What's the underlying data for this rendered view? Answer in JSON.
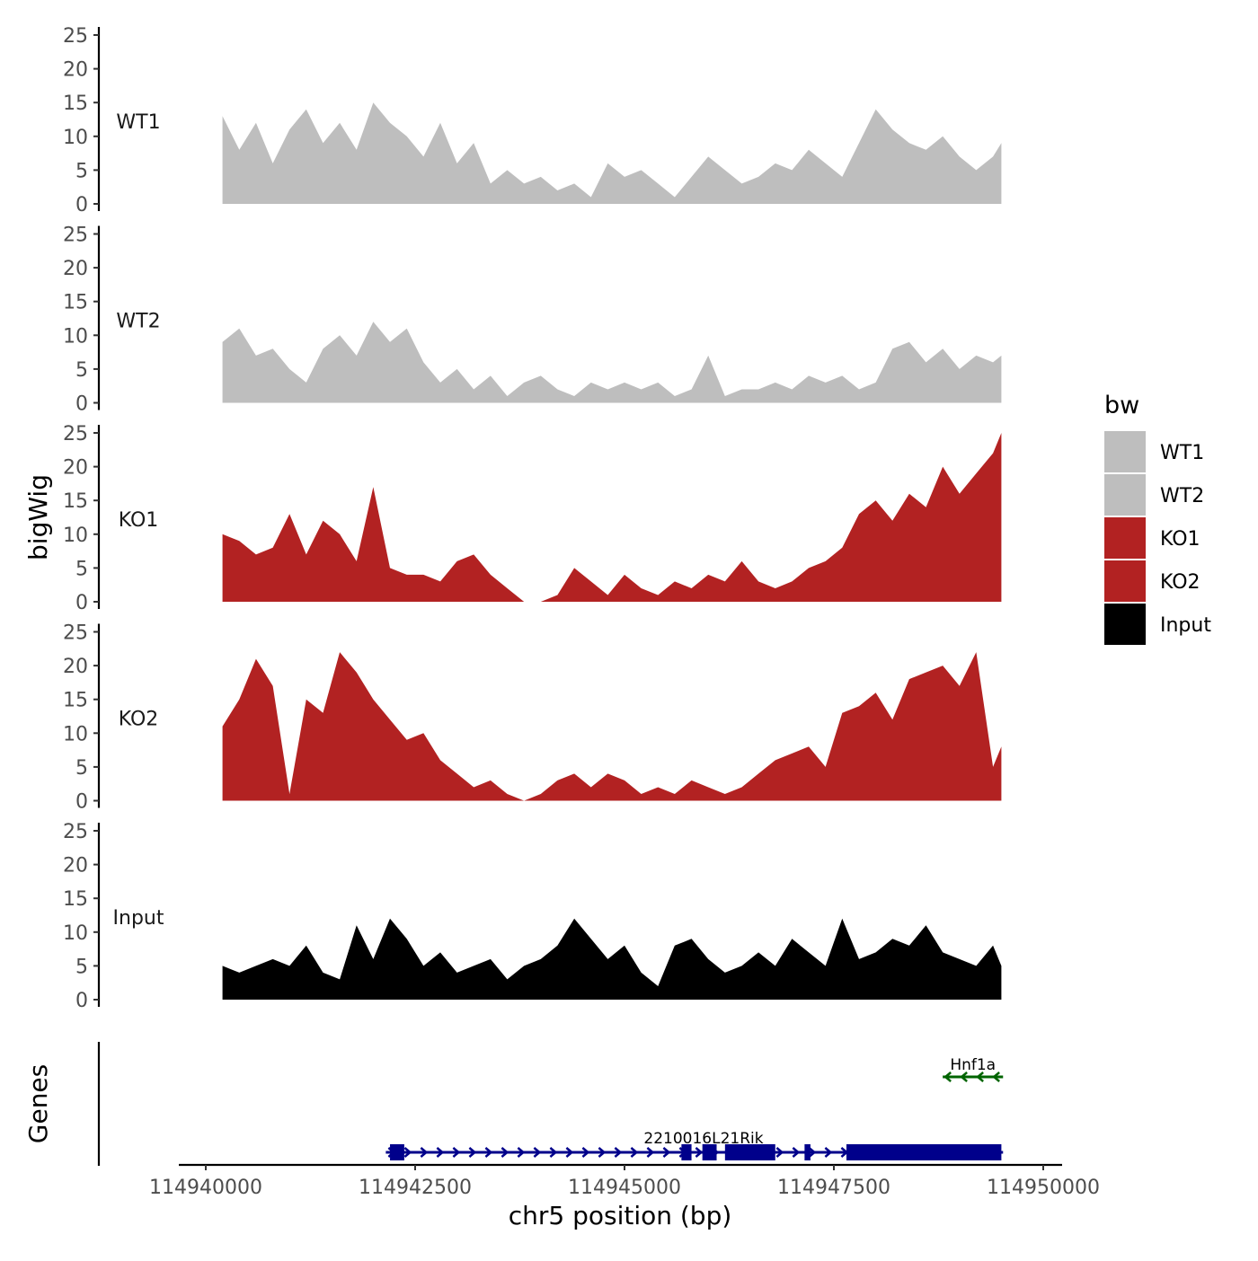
{
  "chart_data": {
    "type": "area",
    "tracks_title": "bigWig",
    "genes_title": "Genes",
    "xlabel": "chr5 position (bp)",
    "xlim": [
      114940000,
      114950000
    ],
    "x_ticks": [
      "114940000",
      "114942500",
      "114945000",
      "114947500",
      "114950000"
    ],
    "x_tick_values": [
      114940000,
      114942500,
      114945000,
      114947500,
      114950000
    ],
    "ylim": [
      0,
      25
    ],
    "y_ticks": [
      "0",
      "5",
      "10",
      "15",
      "20",
      "25"
    ],
    "y_tick_values": [
      0,
      5,
      10,
      15,
      20,
      25
    ],
    "legend": {
      "title": "bw",
      "position": "right",
      "entries": [
        {
          "label": "WT1",
          "color": "#bebebe"
        },
        {
          "label": "WT2",
          "color": "#bebebe"
        },
        {
          "label": "KO1",
          "color": "#b22222"
        },
        {
          "label": "KO2",
          "color": "#b22222"
        },
        {
          "label": "Input",
          "color": "#000000"
        }
      ]
    },
    "series": [
      {
        "name": "WT1",
        "color": "#bebebe",
        "x": [
          114940200,
          114940400,
          114940600,
          114940800,
          114941000,
          114941200,
          114941400,
          114941600,
          114941800,
          114942000,
          114942200,
          114942400,
          114942600,
          114942800,
          114943000,
          114943200,
          114943400,
          114943600,
          114943800,
          114944000,
          114944200,
          114944400,
          114944600,
          114944800,
          114945000,
          114945200,
          114945400,
          114945600,
          114945800,
          114946000,
          114946200,
          114946400,
          114946600,
          114946800,
          114947000,
          114947200,
          114947400,
          114947600,
          114947800,
          114948000,
          114948200,
          114948400,
          114948600,
          114948800,
          114949000,
          114949200,
          114949400,
          114949500
        ],
        "values": [
          13,
          8,
          12,
          6,
          11,
          14,
          9,
          12,
          8,
          15,
          12,
          10,
          7,
          12,
          6,
          9,
          3,
          5,
          3,
          4,
          2,
          3,
          1,
          6,
          4,
          5,
          3,
          1,
          4,
          7,
          5,
          3,
          4,
          6,
          5,
          8,
          6,
          4,
          9,
          14,
          11,
          9,
          8,
          10,
          7,
          5,
          7,
          9
        ]
      },
      {
        "name": "WT2",
        "color": "#bebebe",
        "x": [
          114940200,
          114940400,
          114940600,
          114940800,
          114941000,
          114941200,
          114941400,
          114941600,
          114941800,
          114942000,
          114942200,
          114942400,
          114942600,
          114942800,
          114943000,
          114943200,
          114943400,
          114943600,
          114943800,
          114944000,
          114944200,
          114944400,
          114944600,
          114944800,
          114945000,
          114945200,
          114945400,
          114945600,
          114945800,
          114946000,
          114946200,
          114946400,
          114946600,
          114946800,
          114947000,
          114947200,
          114947400,
          114947600,
          114947800,
          114948000,
          114948200,
          114948400,
          114948600,
          114948800,
          114949000,
          114949200,
          114949400,
          114949500
        ],
        "values": [
          9,
          11,
          7,
          8,
          5,
          3,
          8,
          10,
          7,
          12,
          9,
          11,
          6,
          3,
          5,
          2,
          4,
          1,
          3,
          4,
          2,
          1,
          3,
          2,
          3,
          2,
          3,
          1,
          2,
          7,
          1,
          2,
          2,
          3,
          2,
          4,
          3,
          4,
          2,
          3,
          8,
          9,
          6,
          8,
          5,
          7,
          6,
          7
        ]
      },
      {
        "name": "KO1",
        "color": "#b22222",
        "x": [
          114940200,
          114940400,
          114940600,
          114940800,
          114941000,
          114941200,
          114941400,
          114941600,
          114941800,
          114942000,
          114942200,
          114942400,
          114942600,
          114942800,
          114943000,
          114943200,
          114943400,
          114943600,
          114943800,
          114944000,
          114944200,
          114944400,
          114944600,
          114944800,
          114945000,
          114945200,
          114945400,
          114945600,
          114945800,
          114946000,
          114946200,
          114946400,
          114946600,
          114946800,
          114947000,
          114947200,
          114947400,
          114947600,
          114947800,
          114948000,
          114948200,
          114948400,
          114948600,
          114948800,
          114949000,
          114949200,
          114949400,
          114949500
        ],
        "values": [
          10,
          9,
          7,
          8,
          13,
          7,
          12,
          10,
          6,
          17,
          5,
          4,
          4,
          3,
          6,
          7,
          4,
          2,
          0,
          0,
          1,
          5,
          3,
          1,
          4,
          2,
          1,
          3,
          2,
          4,
          3,
          6,
          3,
          2,
          3,
          5,
          6,
          8,
          13,
          15,
          12,
          16,
          14,
          20,
          16,
          19,
          22,
          25
        ]
      },
      {
        "name": "KO2",
        "color": "#b22222",
        "x": [
          114940200,
          114940400,
          114940600,
          114940800,
          114941000,
          114941200,
          114941400,
          114941600,
          114941800,
          114942000,
          114942200,
          114942400,
          114942600,
          114942800,
          114943000,
          114943200,
          114943400,
          114943600,
          114943800,
          114944000,
          114944200,
          114944400,
          114944600,
          114944800,
          114945000,
          114945200,
          114945400,
          114945600,
          114945800,
          114946000,
          114946200,
          114946400,
          114946600,
          114946800,
          114947000,
          114947200,
          114947400,
          114947600,
          114947800,
          114948000,
          114948200,
          114948400,
          114948600,
          114948800,
          114949000,
          114949200,
          114949400,
          114949500
        ],
        "values": [
          11,
          15,
          21,
          17,
          1,
          15,
          13,
          22,
          19,
          15,
          12,
          9,
          10,
          6,
          4,
          2,
          3,
          1,
          0,
          1,
          3,
          4,
          2,
          4,
          3,
          1,
          2,
          1,
          3,
          2,
          1,
          2,
          4,
          6,
          7,
          8,
          5,
          13,
          14,
          16,
          12,
          18,
          19,
          20,
          17,
          22,
          5,
          8
        ]
      },
      {
        "name": "Input",
        "color": "#000000",
        "x": [
          114940200,
          114940400,
          114940600,
          114940800,
          114941000,
          114941200,
          114941400,
          114941600,
          114941800,
          114942000,
          114942200,
          114942400,
          114942600,
          114942800,
          114943000,
          114943200,
          114943400,
          114943600,
          114943800,
          114944000,
          114944200,
          114944400,
          114944600,
          114944800,
          114945000,
          114945200,
          114945400,
          114945600,
          114945800,
          114946000,
          114946200,
          114946400,
          114946600,
          114946800,
          114947000,
          114947200,
          114947400,
          114947600,
          114947800,
          114948000,
          114948200,
          114948400,
          114948600,
          114948800,
          114949000,
          114949200,
          114949400,
          114949500
        ],
        "values": [
          5,
          4,
          5,
          6,
          5,
          8,
          4,
          3,
          11,
          6,
          12,
          9,
          5,
          7,
          4,
          5,
          6,
          3,
          5,
          6,
          8,
          12,
          9,
          6,
          8,
          4,
          2,
          8,
          9,
          6,
          4,
          5,
          7,
          5,
          9,
          7,
          5,
          12,
          6,
          7,
          9,
          8,
          11,
          7,
          6,
          5,
          8,
          5
        ]
      }
    ],
    "genes": [
      {
        "name": "Hnf1a",
        "color": "#006400",
        "strand": "-",
        "start": 114948800,
        "end": 114949520,
        "exons": []
      },
      {
        "name": "2210016L21Rik",
        "color": "#00008b",
        "strand": "+",
        "start": 114942150,
        "end": 114949520,
        "exons": [
          [
            114942200,
            114942370
          ],
          [
            114945680,
            114945800
          ],
          [
            114945930,
            114946100
          ],
          [
            114946200,
            114946800
          ],
          [
            114947150,
            114947220
          ],
          [
            114947650,
            114949500
          ]
        ]
      }
    ]
  }
}
